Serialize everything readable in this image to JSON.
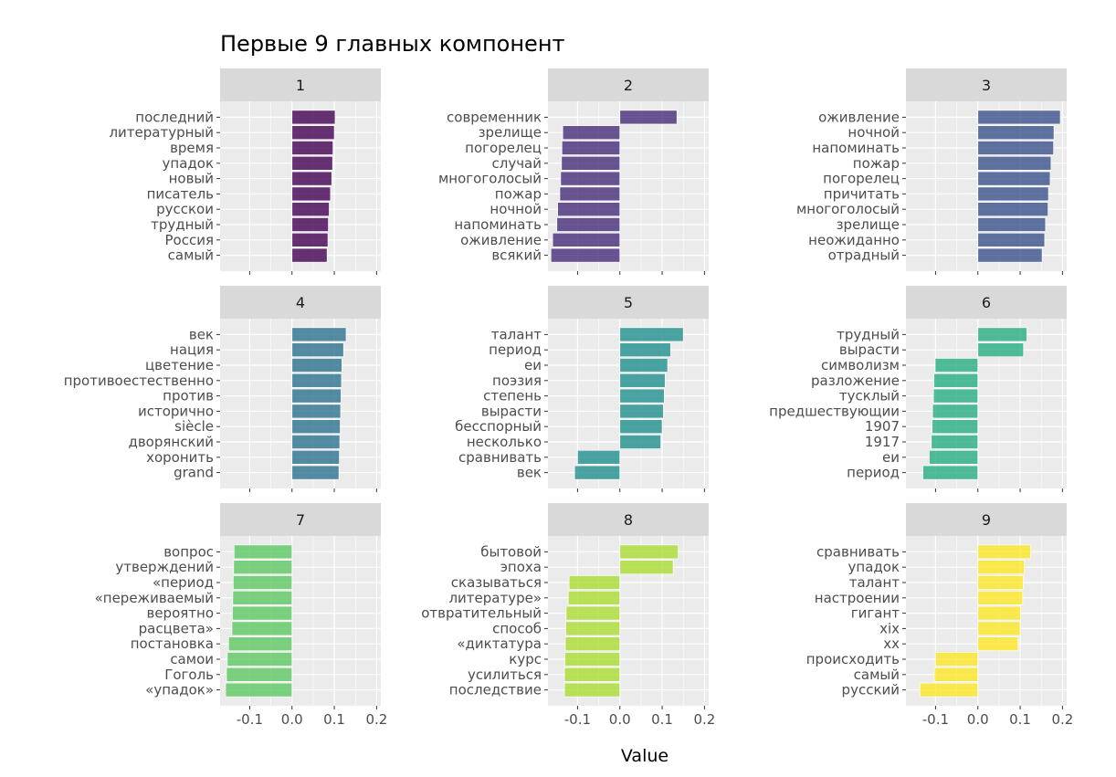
{
  "chart_data": {
    "type": "bar",
    "orientation": "horizontal",
    "title": "Первые 9 главных компонент",
    "xlabel": "Value",
    "ylabel": "",
    "xlim": [
      -0.17,
      0.21
    ],
    "xticks": [
      -0.1,
      0.0,
      0.1,
      0.2
    ],
    "xtick_labels": [
      "-0.1",
      "0.0",
      "0.1",
      "0.2"
    ],
    "grid": true,
    "legend": "none",
    "panels": [
      {
        "label": "1",
        "color": "#440154",
        "categories": [
          "последний",
          "литературный",
          "время",
          "упадок",
          "новый",
          "писатель",
          "русскои ",
          "трудный",
          "Россия",
          "самый"
        ],
        "values": [
          0.102,
          0.1,
          0.097,
          0.096,
          0.094,
          0.091,
          0.088,
          0.086,
          0.085,
          0.083
        ]
      },
      {
        "label": "2",
        "color": "#472D7B",
        "categories": [
          "современник",
          "зрелище",
          "погорелец",
          "случай",
          "многоголосый",
          "пожар",
          "ночной",
          "напоминать",
          "оживление",
          "всякий"
        ],
        "values": [
          0.135,
          -0.135,
          -0.137,
          -0.138,
          -0.14,
          -0.142,
          -0.147,
          -0.149,
          -0.159,
          -0.163
        ]
      },
      {
        "label": "3",
        "color": "#3B528B",
        "categories": [
          "оживление",
          "ночной",
          "напоминать",
          "пожар",
          "погорелец",
          "причитать",
          "многоголосый",
          "зрелище",
          "неожиданно",
          "отрадный"
        ],
        "values": [
          0.195,
          0.18,
          0.179,
          0.173,
          0.171,
          0.167,
          0.166,
          0.16,
          0.158,
          0.152
        ]
      },
      {
        "label": "4",
        "color": "#2C728E",
        "categories": [
          "век",
          "нация",
          "цветение",
          "противоестественно",
          "против",
          "исторично",
          "siècle",
          "дворянский",
          "хоронить",
          "grand"
        ],
        "values": [
          0.128,
          0.122,
          0.118,
          0.117,
          0.116,
          0.115,
          0.114,
          0.113,
          0.112,
          0.111
        ]
      },
      {
        "label": "5",
        "color": "#21908C",
        "categories": [
          "талант",
          "период",
          "еи ",
          "поэзия",
          "степень",
          "вырасти",
          "бесспорный",
          "несколько",
          "сравнивать",
          "век"
        ],
        "values": [
          0.15,
          0.12,
          0.113,
          0.107,
          0.105,
          0.103,
          0.1,
          0.097,
          -0.1,
          -0.107
        ]
      },
      {
        "label": "6",
        "color": "#27AD81",
        "categories": [
          "трудный",
          "вырасти",
          "символизм",
          "разложение",
          "тусклый",
          "предшествующии ",
          "1907",
          "1917",
          "еи ",
          "период"
        ],
        "values": [
          0.116,
          0.108,
          -0.101,
          -0.104,
          -0.105,
          -0.107,
          -0.108,
          -0.11,
          -0.115,
          -0.13
        ]
      },
      {
        "label": "7",
        "color": "#5DC863",
        "categories": [
          "вопрос",
          "утверждений",
          "«период",
          "«переживаемый",
          "вероятно",
          "расцвета»",
          "постановка",
          "самои ",
          "Гоголь",
          "«упадок»"
        ],
        "values": [
          -0.137,
          -0.138,
          -0.139,
          -0.14,
          -0.141,
          -0.142,
          -0.15,
          -0.153,
          -0.155,
          -0.157
        ]
      },
      {
        "label": "8",
        "color": "#AADC32",
        "categories": [
          "бытовой",
          "эпоха",
          "сказываться",
          "литературе»",
          "отвратительный",
          "способ",
          "«диктатура",
          "курс",
          "усилиться",
          "последствие"
        ],
        "values": [
          0.138,
          0.126,
          -0.12,
          -0.122,
          -0.127,
          -0.128,
          -0.129,
          -0.13,
          -0.131,
          -0.131
        ]
      },
      {
        "label": "9",
        "color": "#FDE725",
        "categories": [
          "сравнивать",
          "упадок",
          "талант",
          "настроении ",
          "гигант",
          "xix",
          "xx",
          "происходить",
          "самый",
          "русский"
        ],
        "values": [
          0.125,
          0.11,
          0.107,
          0.106,
          0.101,
          0.1,
          0.095,
          -0.1,
          -0.103,
          -0.137
        ]
      }
    ]
  }
}
